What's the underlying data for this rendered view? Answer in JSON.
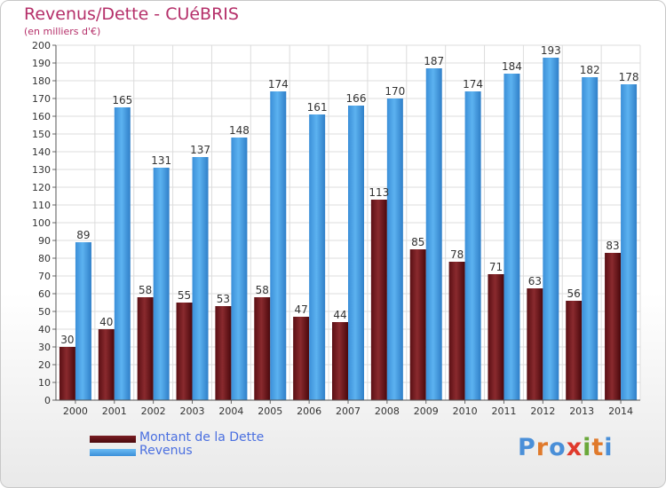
{
  "chart_data": {
    "type": "bar",
    "title": "Revenus/Dette - CUéBRIS",
    "subtitle": "(en milliers d'€)",
    "categories": [
      "2000",
      "2001",
      "2002",
      "2003",
      "2004",
      "2005",
      "2006",
      "2007",
      "2008",
      "2009",
      "2010",
      "2011",
      "2012",
      "2013",
      "2014"
    ],
    "series": [
      {
        "name": "Montant de la Dette",
        "color": "#7a1e23",
        "values": [
          30,
          40,
          58,
          55,
          53,
          58,
          47,
          44,
          113,
          85,
          78,
          71,
          63,
          56,
          83
        ]
      },
      {
        "name": "Revenus",
        "color": "#4aa3e8",
        "values": [
          89,
          165,
          131,
          137,
          148,
          174,
          161,
          166,
          170,
          187,
          174,
          184,
          193,
          182,
          178
        ]
      }
    ],
    "ylim": [
      0,
      200
    ],
    "ytick_step": 10,
    "grid": true,
    "legend_position": "bottom-left"
  },
  "branding": {
    "logo_text": "Proxiti",
    "letter_colors": [
      "#4a8fd8",
      "#e07a2c",
      "#4a8fd8",
      "#e03a2c",
      "#6aa83a",
      "#e07a2c",
      "#4a8fd8"
    ]
  }
}
